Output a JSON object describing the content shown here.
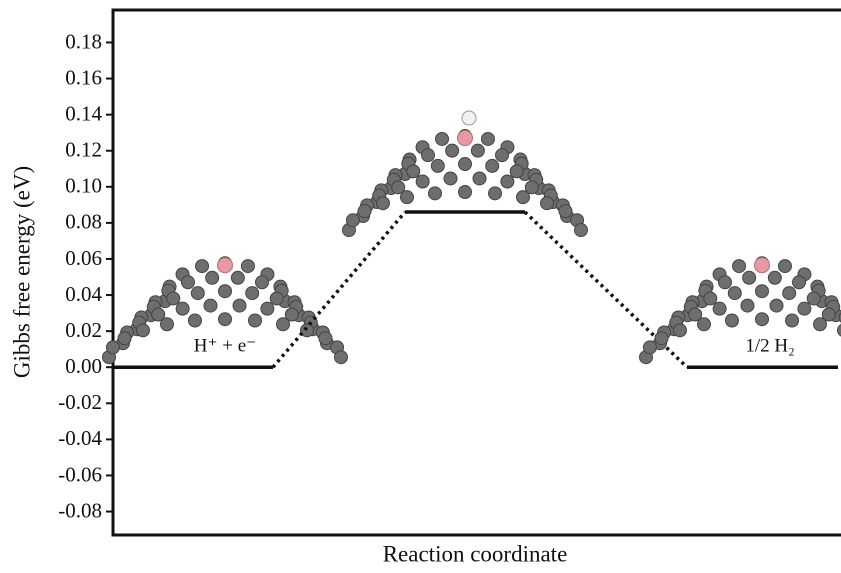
{
  "chart_data": {
    "type": "energy-diagram",
    "y_label": "Gibbs free energy (eV)",
    "x_label": "Reaction coordinate",
    "categories": [
      "H⁺ + e⁻",
      null,
      "1/2 H₂"
    ],
    "values": [
      0,
      0.086,
      0
    ],
    "color": "#111111",
    "ylim": [
      -0.093,
      0.198
    ],
    "yticks": [
      {
        "value": -0.08,
        "label": "-0.08"
      },
      {
        "value": -0.06,
        "label": "-0.06"
      },
      {
        "value": -0.04,
        "label": "-0.04"
      },
      {
        "value": -0.02,
        "label": "-0.02"
      },
      {
        "value": 0,
        "label": "0.00"
      },
      {
        "value": 0.02,
        "label": "0.02"
      },
      {
        "value": 0.04,
        "label": "0.04"
      },
      {
        "value": 0.06,
        "label": "0.06"
      },
      {
        "value": 0.08,
        "label": "0.08"
      },
      {
        "value": 0.1,
        "label": "0.10"
      },
      {
        "value": 0.12,
        "label": "0.12"
      },
      {
        "value": 0.14,
        "label": "0.14"
      },
      {
        "value": 0.16,
        "label": "0.16"
      },
      {
        "value": 0.18,
        "label": "0.18"
      }
    ]
  }
}
